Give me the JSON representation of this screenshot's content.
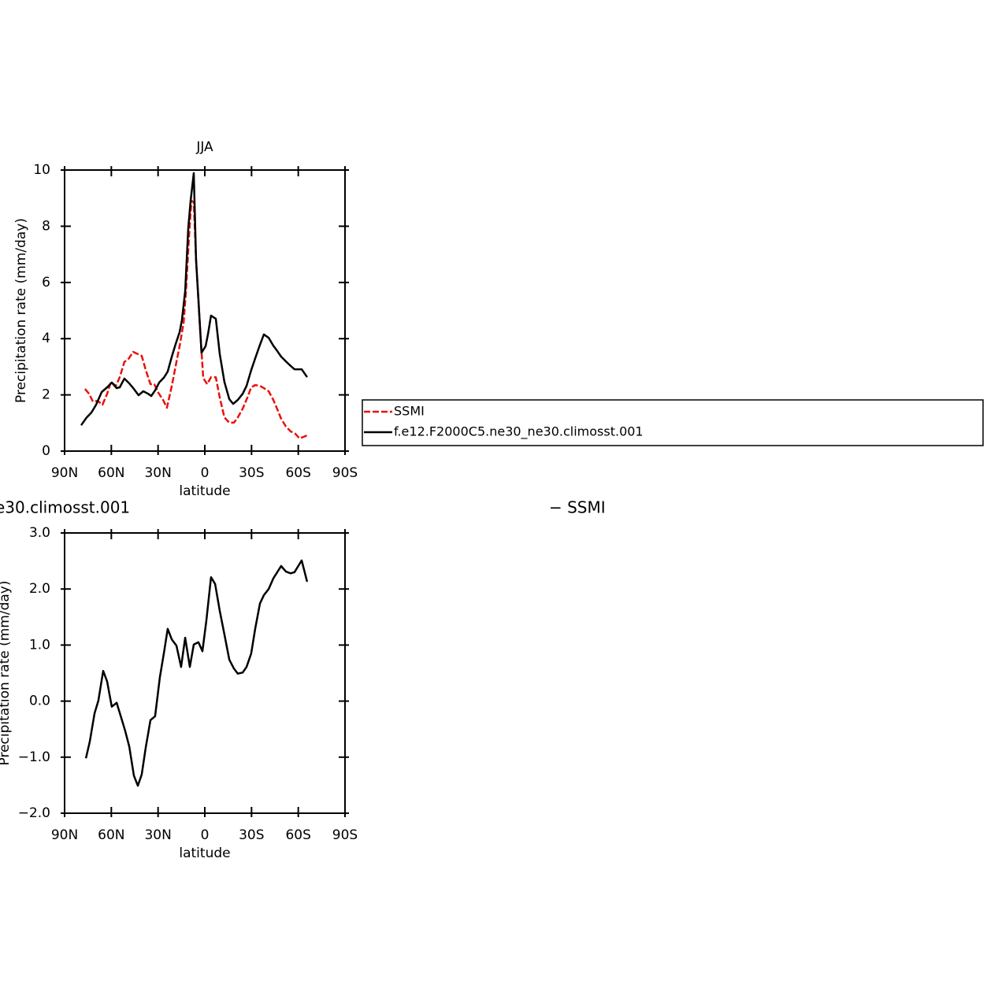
{
  "chart_data": [
    {
      "type": "line",
      "title": "JJA",
      "xlabel": "latitude",
      "ylabel": "Precipitation rate (mm/day)",
      "xlim": [
        90,
        -90
      ],
      "xticks": [
        {
          "value": 90,
          "label": "90N"
        },
        {
          "value": 60,
          "label": "60N"
        },
        {
          "value": 30,
          "label": "30N"
        },
        0,
        {
          "value": -30,
          "label": "30S"
        },
        {
          "value": -60,
          "label": "60S"
        },
        {
          "value": -90,
          "label": "90S"
        }
      ],
      "ylim": [
        0,
        10
      ],
      "yticks": [
        0,
        2,
        4,
        6,
        8,
        10
      ],
      "legend": "right",
      "series": [
        {
          "name": "SSMI",
          "color": "#e8120c",
          "dash": true,
          "x": [
            76.9,
            74.3,
            71.8,
            68.8,
            65.7,
            62.7,
            60.2,
            57.1,
            54.6,
            51.6,
            49.0,
            46.0,
            43.0,
            40.5,
            37.9,
            34.9,
            32.4,
            29.8,
            26.8,
            24.3,
            21.2,
            18.2,
            16.2,
            13.6,
            12.1,
            10.1,
            8.6,
            7.1,
            5.6,
            3.6,
            1.0,
            -1.5,
            -4.0,
            -7.1,
            -9.6,
            -12.6,
            -15.7,
            -18.7,
            -21.2,
            -24.3,
            -27.3,
            -29.8,
            -32.4,
            -35.4,
            -37.9,
            -41.0,
            -44.0,
            -46.5,
            -49.0,
            -52.1,
            -55.1,
            -58.1,
            -60.7,
            -63.2,
            -65.7
          ],
          "values": [
            2.21,
            2.04,
            1.76,
            1.79,
            1.65,
            2.04,
            2.46,
            2.32,
            2.63,
            3.17,
            3.28,
            3.53,
            3.45,
            3.39,
            2.89,
            2.38,
            2.38,
            2.07,
            1.82,
            1.54,
            2.32,
            3.17,
            3.73,
            4.57,
            5.69,
            7.65,
            8.91,
            8.85,
            6.81,
            4.85,
            2.6,
            2.38,
            2.63,
            2.63,
            1.9,
            1.2,
            1.01,
            1.01,
            1.2,
            1.51,
            1.9,
            2.27,
            2.35,
            2.32,
            2.24,
            2.13,
            1.82,
            1.49,
            1.15,
            0.87,
            0.7,
            0.62,
            0.45,
            0.5,
            0.56
          ]
        },
        {
          "name": "f.e12.F2000C5.ne30_ne30.climosst.001",
          "color": "#000000",
          "dash": false,
          "x": [
            79.4,
            75.8,
            72.8,
            69.8,
            66.2,
            62.7,
            59.7,
            56.6,
            54.6,
            51.6,
            48.5,
            45.5,
            42.5,
            39.5,
            36.4,
            34.4,
            31.9,
            29.3,
            26.3,
            23.8,
            21.2,
            18.7,
            16.2,
            14.7,
            12.6,
            10.6,
            9.1,
            7.1,
            5.6,
            4.1,
            2.1,
            -0.5,
            -2.0,
            -4.0,
            -7.1,
            -9.6,
            -12.6,
            -15.7,
            -18.2,
            -21.2,
            -24.3,
            -26.8,
            -29.8,
            -32.9,
            -35.4,
            -37.9,
            -41.0,
            -44.0,
            -46.5,
            -49.0,
            -52.1,
            -55.1,
            -57.6,
            -60.7,
            -62.2,
            -65.7
          ],
          "values": [
            0.92,
            1.2,
            1.37,
            1.65,
            2.1,
            2.27,
            2.44,
            2.24,
            2.27,
            2.58,
            2.41,
            2.21,
            1.99,
            2.13,
            2.04,
            1.96,
            2.16,
            2.44,
            2.61,
            2.83,
            3.36,
            3.81,
            4.23,
            4.65,
            5.69,
            7.93,
            8.91,
            9.89,
            6.81,
            5.41,
            3.5,
            3.73,
            4.15,
            4.82,
            4.71,
            3.45,
            2.46,
            1.85,
            1.68,
            1.82,
            2.04,
            2.32,
            2.88,
            3.39,
            3.78,
            4.15,
            4.03,
            3.75,
            3.56,
            3.36,
            3.19,
            3.03,
            2.91,
            2.91,
            2.91,
            2.63
          ]
        }
      ]
    },
    {
      "type": "line",
      "title": "e30.climosst.001",
      "title_right": "− SSMI",
      "xlabel": "latitude",
      "ylabel": "Precipitation rate (mm/day)",
      "xlim": [
        90,
        -90
      ],
      "xticks": [
        {
          "value": 90,
          "label": "90N"
        },
        {
          "value": 60,
          "label": "60N"
        },
        {
          "value": 30,
          "label": "30N"
        },
        0,
        {
          "value": -30,
          "label": "30S"
        },
        {
          "value": -60,
          "label": "60S"
        },
        {
          "value": -90,
          "label": "90S"
        }
      ],
      "ylim": [
        -2,
        3
      ],
      "yticks": [
        {
          "value": -2,
          "label": "−2.0"
        },
        {
          "value": -1,
          "label": "−1.0"
        },
        {
          "value": 0,
          "label": "0.0"
        },
        {
          "value": 1,
          "label": "1.0"
        },
        {
          "value": 2,
          "label": "2.0"
        },
        {
          "value": 3,
          "label": "3.0"
        }
      ],
      "series": [
        {
          "color": "#000000",
          "dash": false,
          "x": [
            76.3,
            73.8,
            70.8,
            68.3,
            65.2,
            62.7,
            59.7,
            56.6,
            53.6,
            51.1,
            48.5,
            45.5,
            43.0,
            40.5,
            37.9,
            34.9,
            31.9,
            28.8,
            26.3,
            23.8,
            21.2,
            18.2,
            15.2,
            12.6,
            9.6,
            7.1,
            4.1,
            1.5,
            -1.0,
            -4.0,
            -6.6,
            -9.6,
            -12.6,
            -15.7,
            -18.7,
            -21.2,
            -24.3,
            -26.8,
            -29.8,
            -32.4,
            -35.4,
            -37.9,
            -41.0,
            -44.0,
            -46.5,
            -49.0,
            -52.1,
            -55.1,
            -57.6,
            -62.2,
            -65.7
          ],
          "values": [
            -1.02,
            -0.72,
            -0.22,
            0.01,
            0.54,
            0.35,
            -0.1,
            -0.03,
            -0.3,
            -0.53,
            -0.81,
            -1.33,
            -1.51,
            -1.31,
            -0.83,
            -0.34,
            -0.27,
            0.43,
            0.85,
            1.29,
            1.1,
            0.99,
            0.61,
            1.13,
            0.61,
            1.01,
            1.05,
            0.89,
            1.44,
            2.21,
            2.09,
            1.61,
            1.19,
            0.74,
            0.58,
            0.49,
            0.51,
            0.61,
            0.85,
            1.3,
            1.74,
            1.89,
            2.0,
            2.19,
            2.3,
            2.41,
            2.31,
            2.28,
            2.3,
            2.51,
            2.13
          ]
        }
      ]
    }
  ]
}
